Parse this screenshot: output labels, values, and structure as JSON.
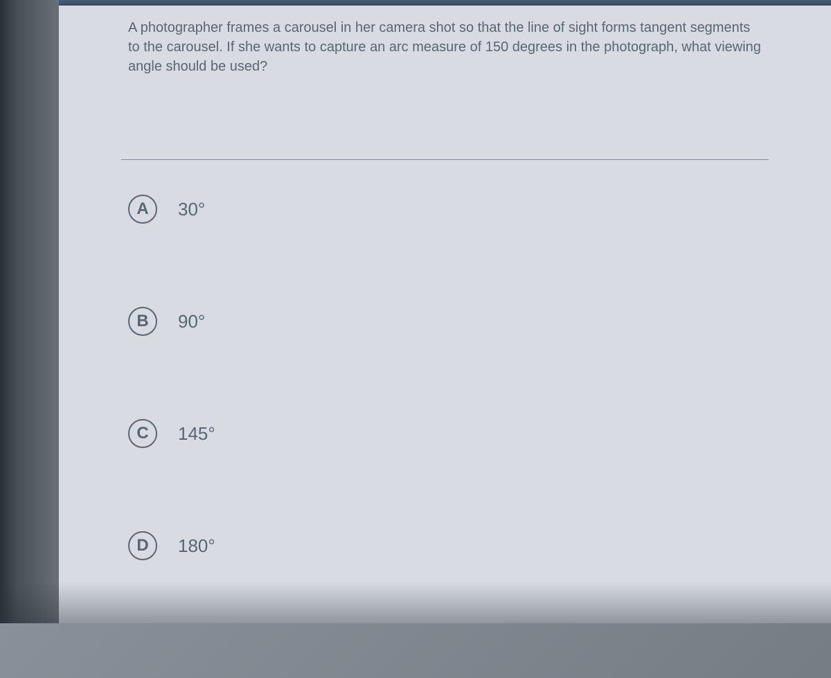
{
  "question": {
    "text": "A photographer frames a carousel in her camera shot so that the line of sight forms tangent segments to the carousel. If she wants to capture an arc measure of 150 degrees in the photograph, what viewing angle should be used?"
  },
  "options": [
    {
      "letter": "A",
      "text": "30°"
    },
    {
      "letter": "B",
      "text": "90°"
    },
    {
      "letter": "C",
      "text": "145°"
    },
    {
      "letter": "D",
      "text": "180°"
    }
  ],
  "colors": {
    "background": "#d8dce2",
    "text": "#5a6572",
    "border": "#5a6572",
    "divider": "#808a95"
  }
}
